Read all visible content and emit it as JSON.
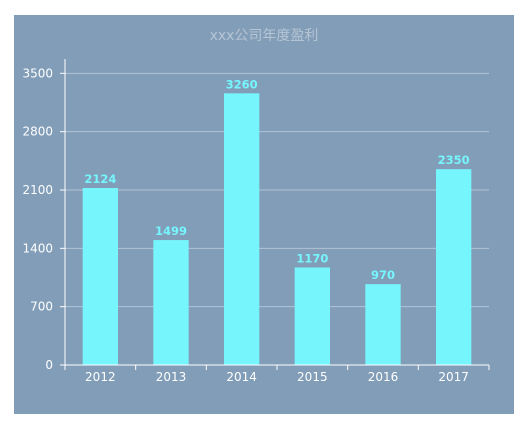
{
  "colors": {
    "background": "#819db8",
    "bar": "#76f5fd",
    "axis": "#ffffff",
    "grid": "#b3c4d6",
    "title": "#b6c5d4",
    "tick_text": "#ffffff",
    "data_label": "#76f5fd"
  },
  "chart_data": {
    "type": "bar",
    "title": "xxx公司年度盈利",
    "xlabel": "",
    "ylabel": "",
    "categories": [
      "2012",
      "2013",
      "2014",
      "2015",
      "2016",
      "2017"
    ],
    "values": [
      2124,
      1499,
      3260,
      1170,
      970,
      2350
    ],
    "ylim": [
      0,
      3600
    ],
    "yticks": [
      0,
      700,
      1400,
      2100,
      2800,
      3500
    ],
    "grid": true,
    "data_labels": true,
    "legend": "none"
  }
}
